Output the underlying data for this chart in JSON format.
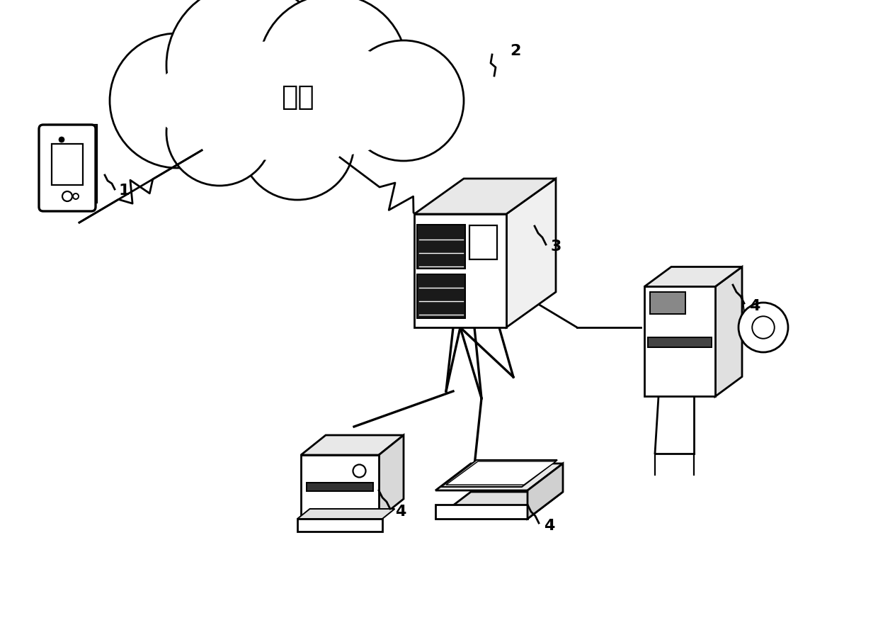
{
  "background_color": "#ffffff",
  "cloud_label": "云端",
  "label_font_size": 16,
  "line_color": "#000000",
  "line_width": 2.0,
  "labels": {
    "cloud_num": "2",
    "phone_num": "1",
    "server_num": "3",
    "device_num": "4"
  }
}
